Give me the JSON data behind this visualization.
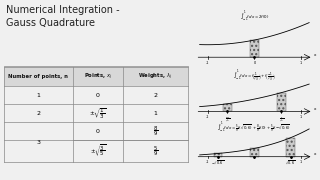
{
  "title": "Numerical Integration -\nGauss Quadrature",
  "bg_color": "#f0f0f0",
  "bottom_bar_color": "#c8651b",
  "header_labels": [
    "Number of points, n",
    "Points, $x_j$",
    "Weights, $\\lambda_j$"
  ],
  "row1": [
    "1",
    "0",
    "2"
  ],
  "row2": [
    "2",
    "$\\pm\\sqrt{\\dfrac{1}{3}}$",
    "1"
  ],
  "row3a_pts": "0",
  "row3a_wts": "$\\dfrac{8}{9}$",
  "row3b_pts": "$\\pm\\sqrt{\\dfrac{3}{5}}$",
  "row3b_wts": "$\\dfrac{5}{9}$",
  "plot1_formula": "$\\int_{-1}^{1} f\\,dx = 2f(0)$",
  "plot2_formula": "$\\int_{-1}^{1} f\\,dx = f\\!\\left(\\frac{1}{\\sqrt{3}}\\right) + f\\!\\left(\\frac{-1}{\\sqrt{3}}\\right)$",
  "plot3_formula": "$\\int_{-1}^{1} f\\,dx = \\frac{5}{9}f(\\sqrt{0.6}) + \\frac{8}{9}f(0) + \\frac{5}{9}f(-\\sqrt{0.6})$",
  "plot1_points": [
    0.0
  ],
  "plot2_points": [
    -0.5774,
    0.5774
  ],
  "plot3_points": [
    -0.7746,
    0.0,
    0.7746
  ],
  "hatch_color": "#bbbbbb",
  "line_color": "#444444"
}
